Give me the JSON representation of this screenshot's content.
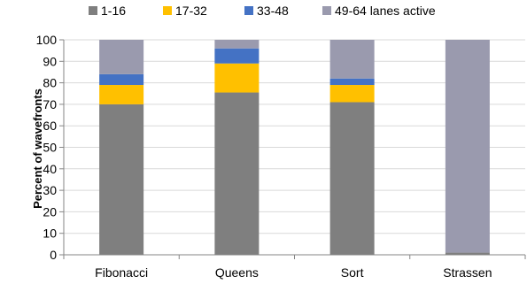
{
  "chart_data": {
    "type": "bar",
    "stacked": true,
    "categories": [
      "Fibonacci",
      "Queens",
      "Sort",
      "Strassen"
    ],
    "series": [
      {
        "name": "1-16",
        "values": [
          70,
          75.5,
          71,
          1
        ],
        "color": "#7f7f7f"
      },
      {
        "name": "17-32",
        "values": [
          9,
          13.5,
          8,
          0
        ],
        "color": "#ffc000"
      },
      {
        "name": "33-48",
        "values": [
          5,
          7,
          3,
          0
        ],
        "color": "#4472c4"
      },
      {
        "name": "49-64  lanes active",
        "values": [
          16,
          4,
          18,
          99
        ],
        "color": "#9a9aae"
      }
    ],
    "ylabel": "Percent of wavefronts",
    "ylim": [
      0,
      100
    ],
    "yticks": [
      0,
      10,
      20,
      30,
      40,
      50,
      60,
      70,
      80,
      90,
      100
    ],
    "grid": true,
    "legend": "top"
  }
}
